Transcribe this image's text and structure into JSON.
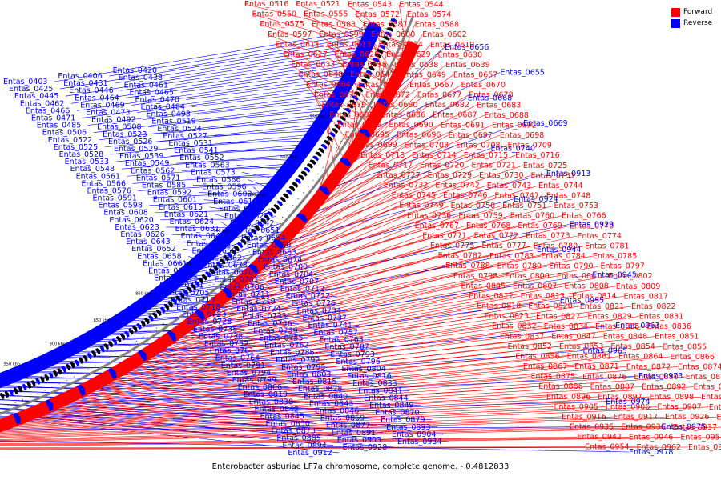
{
  "colors": {
    "forward": "#ff0000",
    "reverse": "#0000ff",
    "backbone": "#808080"
  },
  "legend": [
    {
      "label": "Forward",
      "color": "#ff0000"
    },
    {
      "label": "Reverse",
      "color": "#0000ff"
    }
  ],
  "caption": "Enterobacter asburiae LF7a chromosome, complete genome. - 0.4812833",
  "scale_labels": [
    "450 kbp",
    "500 kbp",
    "550 kbp",
    "600 kbp",
    "650 kbp",
    "700 kbp",
    "750 kbp",
    "800 kbp",
    "850 kbp",
    "900 kbp",
    "950 kbp",
    "1000 kbp",
    "1050 kbp"
  ],
  "forward_labels": [
    "Entas_0516",
    "Entas_0521",
    "Entas_0543",
    "Entas_0544",
    "Entas_0550",
    "Entas_0555",
    "Entas_0572",
    "Entas_0574",
    "Entas_0575",
    "Entas_0583",
    "Entas_0587",
    "Entas_0588",
    "Entas_0597",
    "Entas_0599",
    "Entas_0600",
    "Entas_0602",
    "Entas_0611",
    "Entas_0613",
    "Entas_0614",
    "Entas_0619",
    "Entas_0627",
    "Entas_0628",
    "Entas_0629",
    "Entas_0630",
    "Entas_0633",
    "Entas_0636",
    "Entas_0638",
    "Entas_0639",
    "Entas_0640",
    "Entas_0641",
    "Entas_0649",
    "Entas_0657",
    "Entas_0664",
    "Entas_0665",
    "Entas_0667",
    "Entas_0670",
    "Entas_0671",
    "Entas_0672",
    "Entas_0677",
    "Entas_0678",
    "Entas_0679",
    "Entas_0680",
    "Entas_0682",
    "Entas_0683",
    "Entas_0685",
    "Entas_0686",
    "Entas_0687",
    "Entas_0688",
    "Entas_0689",
    "Entas_0690",
    "Entas_0691",
    "Entas_0692",
    "Entas_0695",
    "Entas_0696",
    "Entas_0697",
    "Entas_0698",
    "Entas_0699",
    "Entas_0703",
    "Entas_0708",
    "Entas_0709",
    "Entas_0713",
    "Entas_0714",
    "Entas_0715",
    "Entas_0716",
    "Entas_0717",
    "Entas_0720",
    "Entas_0721",
    "Entas_0725",
    "Entas_0727",
    "Entas_0729",
    "Entas_0730",
    "Entas_0731",
    "Entas_0732",
    "Entas_0742",
    "Entas_0743",
    "Entas_0744",
    "Entas_0745",
    "Entas_0746",
    "Entas_0747",
    "Entas_0748",
    "Entas_0749",
    "Entas_0750",
    "Entas_0751",
    "Entas_0753",
    "Entas_0756",
    "Entas_0759",
    "Entas_0760",
    "Entas_0766",
    "Entas_0767",
    "Entas_0768",
    "Entas_0769",
    "Entas_0770",
    "Entas_0771",
    "Entas_0772",
    "Entas_0773",
    "Entas_0774",
    "Entas_0775",
    "Entas_0777",
    "Entas_0780",
    "Entas_0781",
    "Entas_0782",
    "Entas_0783",
    "Entas_0784",
    "Entas_0785",
    "Entas_0788",
    "Entas_0789",
    "Entas_0790",
    "Entas_0797",
    "Entas_0798",
    "Entas_0800",
    "Entas_0801",
    "Entas_0802",
    "Entas_0805",
    "Entas_0807",
    "Entas_0808",
    "Entas_0809",
    "Entas_0812",
    "Entas_0813",
    "Entas_0814",
    "Entas_0817",
    "Entas_0818",
    "Entas_0820",
    "Entas_0821",
    "Entas_0822",
    "Entas_0823",
    "Entas_0827",
    "Entas_0829",
    "Entas_0831",
    "Entas_0832",
    "Entas_0834",
    "Entas_0835",
    "Entas_0836",
    "Entas_0837",
    "Entas_0847",
    "Entas_0848",
    "Entas_0851",
    "Entas_0852",
    "Entas_0853",
    "Entas_0854",
    "Entas_0855",
    "Entas_0856",
    "Entas_0861",
    "Entas_0864",
    "Entas_0866",
    "Entas_0867",
    "Entas_0871",
    "Entas_0872",
    "Entas_0874",
    "Entas_0875",
    "Entas_0876",
    "Entas_0880",
    "Entas_0881",
    "Entas_0886",
    "Entas_0887",
    "Entas_0892",
    "Entas_0895",
    "Entas_0896",
    "Entas_0897",
    "Entas_0898",
    "Entas_0902",
    "Entas_0905",
    "Entas_0906",
    "Entas_0907",
    "Entas_0915",
    "Entas_0916",
    "Entas_0917",
    "Entas_0926",
    "Entas_0927",
    "Entas_0935",
    "Entas_0936",
    "Entas_0937",
    "Entas_0938",
    "Entas_0942",
    "Entas_0946",
    "Entas_0951",
    "Entas_0953",
    "Entas_0954",
    "Entas_0962",
    "Entas_0964"
  ],
  "reverse_labels_right": [
    "Entas_0656",
    "Entas_0655",
    "Entas_0668",
    "Entas_0669",
    "Entas_0740",
    "Entas_0913",
    "Entas_0924",
    "Entas_0929",
    "Entas_0944",
    "Entas_0945",
    "Entas_0955",
    "Entas_0963",
    "Entas_0965",
    "Entas_0973",
    "Entas_0974",
    "Entas_0975",
    "Entas_0978"
  ],
  "reverse_labels_left": [
    "Entas_0403",
    "Entas_0406",
    "Entas_0420",
    "Entas_0425",
    "Entas_0431",
    "Entas_0438",
    "Entas_0445",
    "Entas_0446",
    "Entas_0461",
    "Entas_0462",
    "Entas_0464",
    "Entas_0465",
    "Entas_0466",
    "Entas_0469",
    "Entas_0470",
    "Entas_0471",
    "Entas_0473",
    "Entas_0484",
    "Entas_0485",
    "Entas_0492",
    "Entas_0493",
    "Entas_0506",
    "Entas_0508",
    "Entas_0519",
    "Entas_0522",
    "Entas_0523",
    "Entas_0524",
    "Entas_0525",
    "Entas_0526",
    "Entas_0527",
    "Entas_0528",
    "Entas_0529",
    "Entas_0531",
    "Entas_0533",
    "Entas_0539",
    "Entas_0541",
    "Entas_0548",
    "Entas_0549",
    "Entas_0552",
    "Entas_0561",
    "Entas_0562",
    "Entas_0563",
    "Entas_0566",
    "Entas_0571",
    "Entas_0573",
    "Entas_0576",
    "Entas_0585",
    "Entas_0586",
    "Entas_0591",
    "Entas_0592",
    "Entas_0596",
    "Entas_0598",
    "Entas_0601",
    "Entas_0603",
    "Entas_0608",
    "Entas_0615",
    "Entas_0616",
    "Entas_0620",
    "Entas_0621",
    "Entas_0622",
    "Entas_0623",
    "Entas_0624",
    "Entas_0625",
    "Entas_0626",
    "Entas_0631",
    "Entas_0642",
    "Entas_0643",
    "Entas_0644",
    "Entas_0651",
    "Entas_0652",
    "Entas_0653",
    "Entas_0654",
    "Entas_0658",
    "Entas_0659",
    "Entas_0660",
    "Entas_0661",
    "Entas_0662",
    "Entas_0663",
    "Entas_0666",
    "Entas_0673",
    "Entas_0674",
    "Entas_0675",
    "Entas_0676",
    "Entas_0700",
    "Entas_0701",
    "Entas_0702",
    "Entas_0704",
    "Entas_0705",
    "Entas_0706",
    "Entas_0707",
    "Entas_0710",
    "Entas_0711",
    "Entas_0712",
    "Entas_0718",
    "Entas_0719",
    "Entas_0722",
    "Entas_0723",
    "Entas_0724",
    "Entas_0726",
    "Entas_0728",
    "Entas_0733",
    "Entas_0734",
    "Entas_0735",
    "Entas_0736",
    "Entas_0737",
    "Entas_0738",
    "Entas_0739",
    "Entas_0741",
    "Entas_0752",
    "Entas_0755",
    "Entas_0757",
    "Entas_0761",
    "Entas_0762",
    "Entas_0763",
    "Entas_0764",
    "Entas_0786",
    "Entas_0787",
    "Entas_0791",
    "Entas_0792",
    "Entas_0793",
    "Entas_0794",
    "Entas_0795",
    "Entas_0796",
    "Entas_0799",
    "Entas_0803",
    "Entas_0804",
    "Entas_0806",
    "Entas_0815",
    "Entas_0816",
    "Entas_0819",
    "Entas_0828",
    "Entas_0833",
    "Entas_0838",
    "Entas_0840",
    "Entas_0841",
    "Entas_0842",
    "Entas_0843",
    "Entas_0844",
    "Entas_0845",
    "Entas_0846",
    "Entas_0849",
    "Entas_0850",
    "Entas_0869",
    "Entas_0870",
    "Entas_0873",
    "Entas_0877",
    "Entas_0879",
    "Entas_0885",
    "Entas_0891",
    "Entas_0893",
    "Entas_0894",
    "Entas_0903",
    "Entas_0904",
    "Entas_0912",
    "Entas_0928",
    "Entas_0934"
  ]
}
